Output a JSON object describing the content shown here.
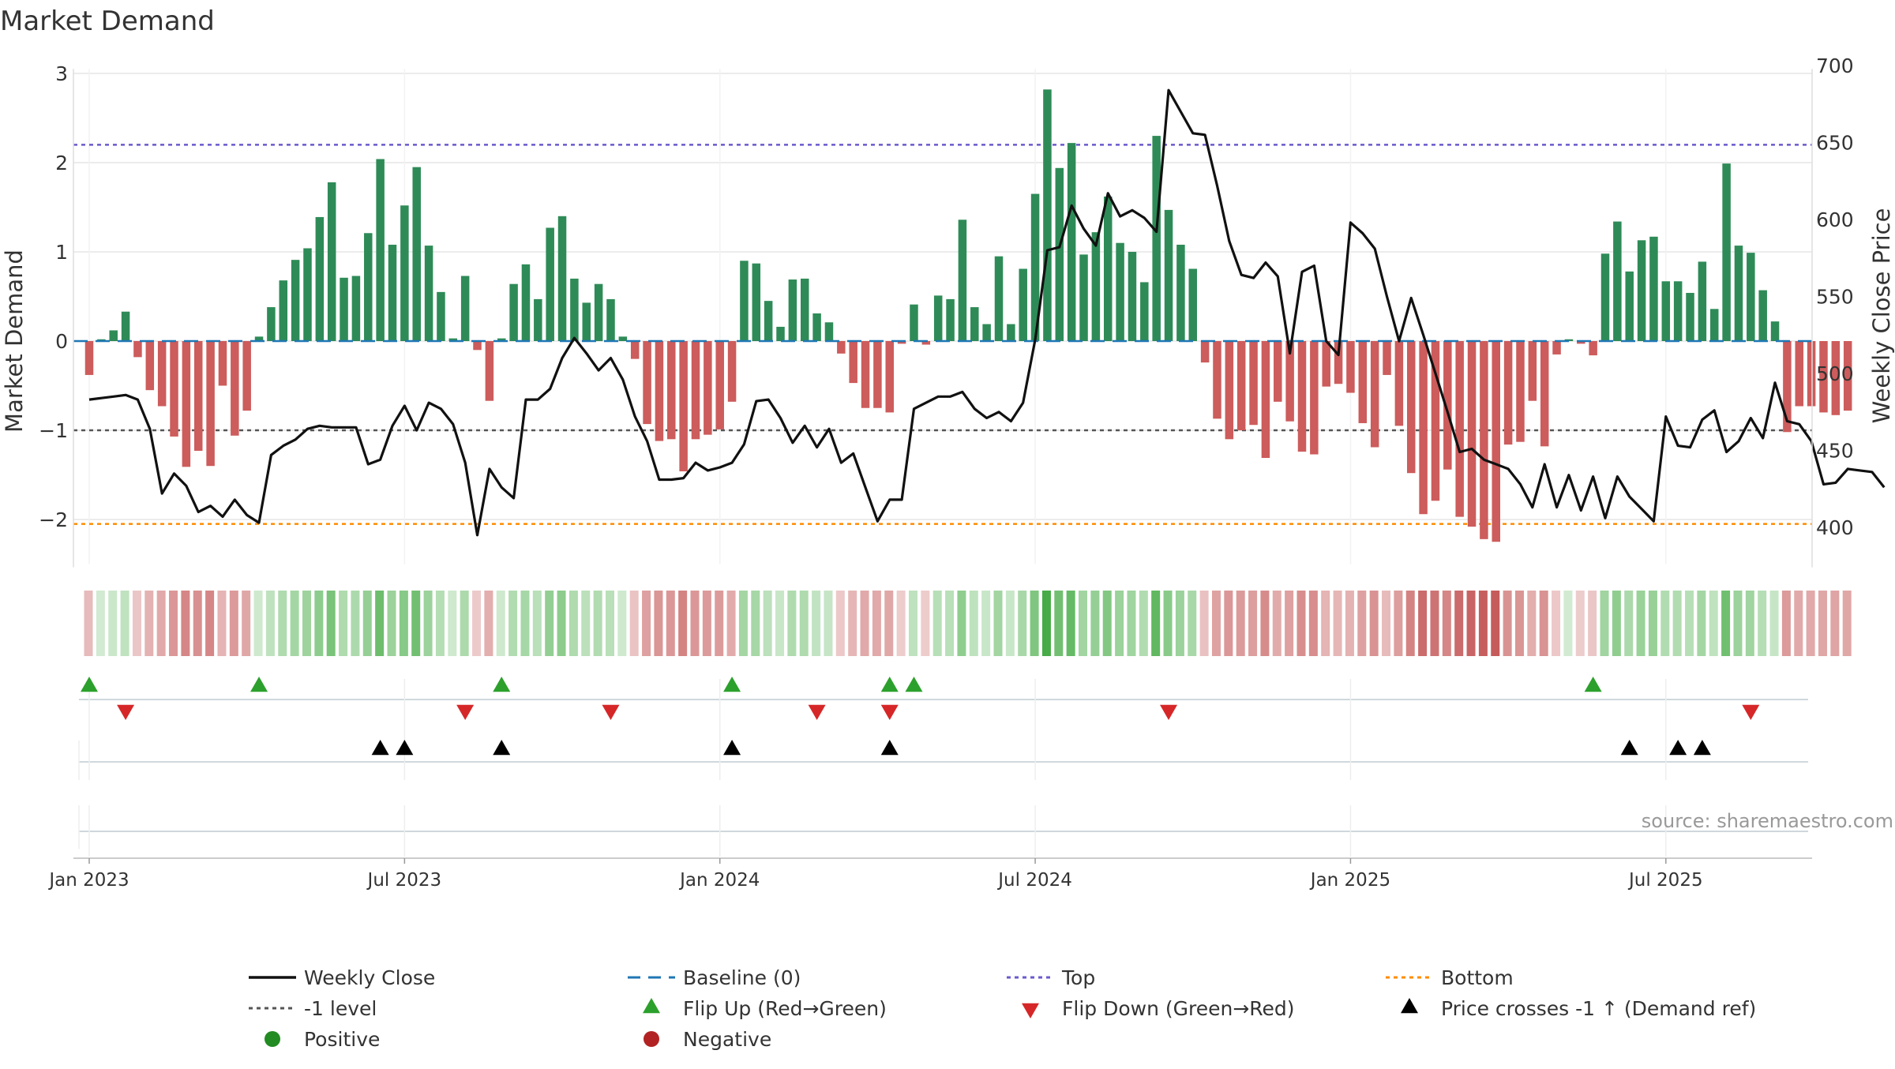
{
  "title": "Market Demand",
  "source": "source: sharemaestro.com",
  "colors": {
    "positive": "#2e8b57",
    "negative": "#cd5c5c",
    "price": "#111111",
    "baseline": "#1f77b4",
    "top": "#6a5acd",
    "bottom": "#ff8c00",
    "minus1": "#555555",
    "flip_up": "#2ca02c",
    "flip_down": "#d62728",
    "cross": "#000000",
    "grid": "#e6e6e6"
  },
  "chart_data": {
    "type": "bar",
    "title": "Market Demand",
    "ylabel": "Market Demand",
    "y2label": "Weekly Close Price",
    "ylim": [
      -2.5,
      3.05
    ],
    "y2lim": [
      375,
      700
    ],
    "yticks": [
      3,
      2,
      1,
      0,
      -1,
      -2
    ],
    "ytick_labels": [
      "3",
      "2",
      "1",
      "0",
      "−1",
      "−2"
    ],
    "y2ticks": [
      700,
      650,
      600,
      550,
      500,
      450,
      400
    ],
    "y2tick_labels": [
      "700",
      "650",
      "600",
      "550",
      "500",
      "450",
      "400"
    ],
    "x_ticks": [
      {
        "week": 0,
        "label": "Jan 2023"
      },
      {
        "week": 26,
        "label": "Jul 2023"
      },
      {
        "week": 52,
        "label": "Jan 2024"
      },
      {
        "week": 78,
        "label": "Jul 2024"
      },
      {
        "week": 104,
        "label": "Jan 2025"
      },
      {
        "week": 130,
        "label": "Jul 2025"
      }
    ],
    "reference_lines": {
      "top": 2.2,
      "bottom": -2.05,
      "minus1": -1,
      "baseline": 0
    },
    "demand": [
      -0.38,
      0.02,
      0.12,
      0.33,
      -0.18,
      -0.55,
      -0.73,
      -1.07,
      -1.41,
      -1.23,
      -1.4,
      -0.5,
      -1.06,
      -0.78,
      0.05,
      0.38,
      0.68,
      0.91,
      1.04,
      1.39,
      1.78,
      0.71,
      0.73,
      1.21,
      2.04,
      1.08,
      1.52,
      1.95,
      1.07,
      0.55,
      0.03,
      0.73,
      -0.1,
      -0.67,
      0.03,
      0.64,
      0.86,
      0.47,
      1.27,
      1.4,
      0.7,
      0.43,
      0.64,
      0.47,
      0.05,
      -0.2,
      -0.93,
      -1.12,
      -1.1,
      -1.46,
      -1.1,
      -1.05,
      -0.99,
      -0.68,
      0.9,
      0.87,
      0.45,
      0.16,
      0.69,
      0.7,
      0.31,
      0.21,
      -0.14,
      -0.47,
      -0.75,
      -0.75,
      -0.8,
      -0.03,
      0.41,
      -0.04,
      0.51,
      0.47,
      1.36,
      0.38,
      0.19,
      0.95,
      0.19,
      0.81,
      1.65,
      2.82,
      1.94,
      2.22,
      0.97,
      1.22,
      1.62,
      1.1,
      1.0,
      0.66,
      2.3,
      1.47,
      1.08,
      0.81,
      -0.24,
      -0.87,
      -1.1,
      -1.0,
      -0.94,
      -1.31,
      -0.68,
      -0.9,
      -1.24,
      -1.27,
      -0.51,
      -0.48,
      -0.58,
      -0.92,
      -1.19,
      -0.38,
      -0.95,
      -1.48,
      -1.94,
      -1.79,
      -1.44,
      -1.97,
      -2.08,
      -2.22,
      -2.25,
      -1.16,
      -1.13,
      -0.67,
      -1.18,
      -0.15,
      0.02,
      -0.03,
      -0.16,
      0.98,
      1.34,
      0.78,
      1.13,
      1.17,
      0.67,
      0.67,
      0.54,
      0.89,
      0.36,
      1.99,
      1.07,
      0.99,
      0.57,
      0.22,
      -1.02,
      -0.73,
      -0.73,
      -0.8,
      -0.83,
      -0.78
    ],
    "price": [
      483,
      484,
      485,
      486,
      483,
      464,
      422,
      435,
      427,
      410,
      414,
      407,
      418,
      408,
      403,
      447,
      453,
      457,
      464,
      466,
      465,
      465,
      465,
      441,
      444,
      466,
      479,
      463,
      481,
      477,
      467,
      442,
      395,
      438,
      426,
      419,
      483,
      483,
      490,
      510,
      523,
      513,
      502,
      510,
      496,
      472,
      456,
      431,
      431,
      432,
      442,
      437,
      439,
      442,
      454,
      482,
      483,
      471,
      455,
      466,
      452,
      464,
      442,
      448,
      426,
      404,
      418,
      418,
      477,
      481,
      485,
      485,
      488,
      477,
      471,
      475,
      469,
      481,
      522,
      580,
      582,
      609,
      594,
      583,
      617,
      602,
      606,
      601,
      592,
      684,
      670,
      656,
      655,
      622,
      586,
      564,
      562,
      572,
      563,
      513,
      566,
      570,
      521,
      512,
      598,
      591,
      581,
      550,
      521,
      549,
      525,
      500,
      475,
      449,
      451,
      444,
      441,
      438,
      428,
      413,
      441,
      413,
      434,
      411,
      433,
      406,
      433,
      420,
      412,
      404,
      472,
      453,
      452,
      470,
      476,
      449,
      456,
      471,
      458,
      494,
      469,
      467,
      456,
      428,
      429,
      438,
      437,
      436,
      426
    ],
    "heat_strip": "weekly demand intensity, green = positive, red = negative",
    "markers": {
      "flip_up": [
        0,
        14,
        34,
        53,
        66,
        68,
        124
      ],
      "flip_down": [
        3,
        31,
        43,
        60,
        66,
        89,
        137
      ],
      "price_crosses_minus1": [
        24,
        26,
        34,
        53,
        66,
        127,
        131,
        133
      ]
    },
    "legend": [
      {
        "key": "close",
        "label": "Weekly Close"
      },
      {
        "key": "baseline",
        "label": "Baseline (0)"
      },
      {
        "key": "top",
        "label": "Top"
      },
      {
        "key": "bottom",
        "label": "Bottom"
      },
      {
        "key": "minus1",
        "label": "-1 level"
      },
      {
        "key": "flip_up",
        "label": "Flip Up (Red→Green)"
      },
      {
        "key": "flip_down",
        "label": "Flip Down (Green→Red)"
      },
      {
        "key": "cross",
        "label": "Price crosses -1 ↑ (Demand ref)"
      },
      {
        "key": "positive",
        "label": "Positive"
      },
      {
        "key": "negative",
        "label": "Negative"
      }
    ],
    "legend_position": "bottom"
  }
}
